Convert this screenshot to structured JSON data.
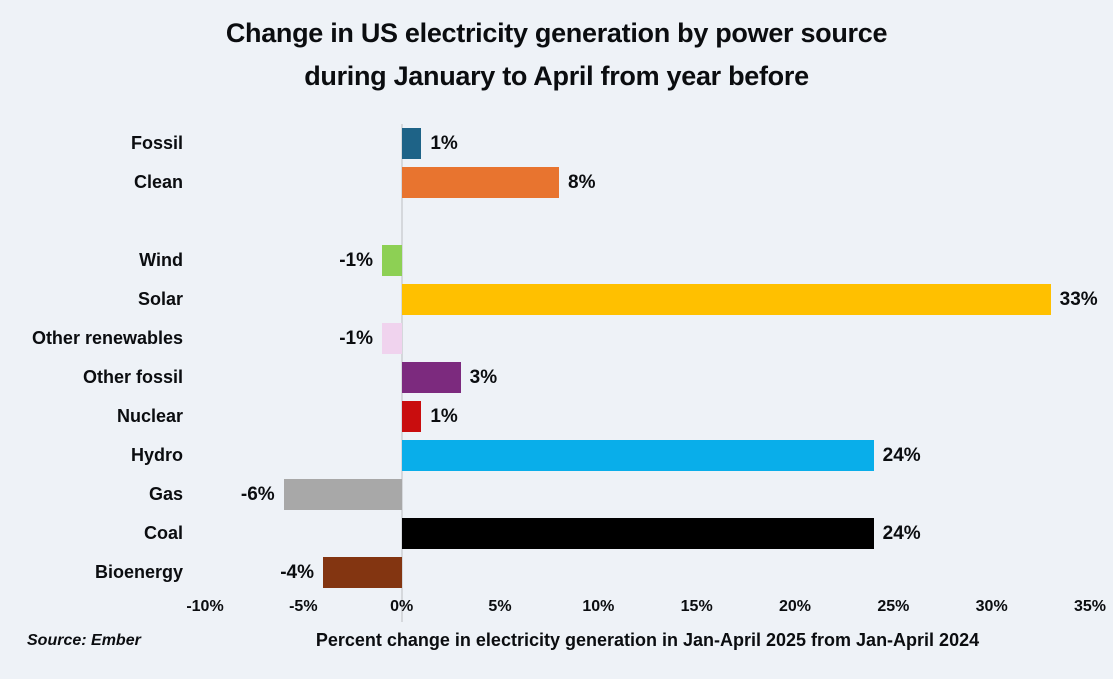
{
  "title": {
    "line1": "Change in US electricity generation by power source",
    "line2": "during January to April from year before"
  },
  "chart_data": {
    "type": "bar",
    "orientation": "horizontal",
    "categories": [
      "Fossil",
      "Clean",
      "Wind",
      "Solar",
      "Other renewables",
      "Other fossil",
      "Nuclear",
      "Hydro",
      "Gas",
      "Coal",
      "Bioenergy"
    ],
    "values": [
      1,
      8,
      -1,
      33,
      -1,
      3,
      1,
      24,
      -6,
      24,
      -4
    ],
    "value_labels": [
      "1%",
      "8%",
      "-1%",
      "33%",
      "-1%",
      "3%",
      "1%",
      "24%",
      "-6%",
      "24%",
      "-4%"
    ],
    "bar_colors": [
      "#1e6387",
      "#e8742f",
      "#8dd054",
      "#ffc000",
      "#f0d3ee",
      "#7c2a7e",
      "#c90d0e",
      "#09aeea",
      "#a8a8a8",
      "#000000",
      "#833511"
    ],
    "gap_after_index": 1,
    "xlabel": "Percent change in electricity generation in Jan-April 2025 from Jan-April 2024",
    "xlim": [
      -10,
      35
    ],
    "x_tick_values": [
      -10,
      -5,
      0,
      5,
      10,
      15,
      20,
      25,
      30,
      35
    ],
    "x_tick_labels": [
      "-10%",
      "-5%",
      "0%",
      "5%",
      "10%",
      "15%",
      "20%",
      "25%",
      "30%",
      "35%"
    ],
    "grid": false,
    "zero_line": true,
    "legend": "none"
  },
  "source": "Source: Ember",
  "colors": {
    "background": "#eef2f7",
    "text": "#0b0d10",
    "zero_line": "#d5d8dc"
  }
}
